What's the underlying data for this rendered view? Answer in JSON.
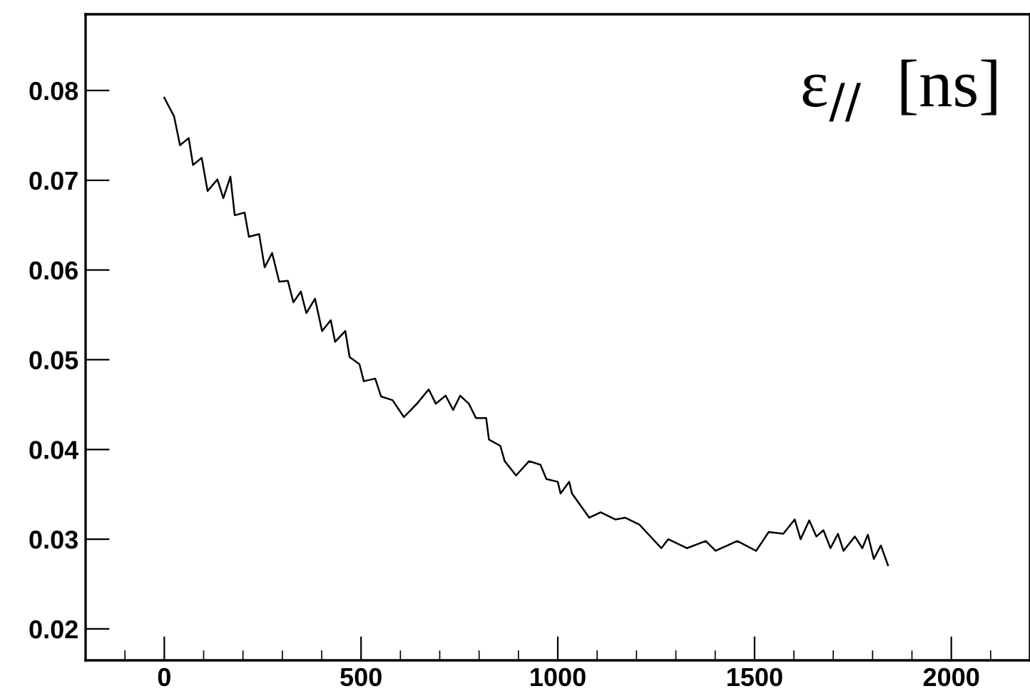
{
  "chart_data": {
    "type": "line",
    "annotations": [
      "ε$_{//}$  [ns]"
    ],
    "xlim": [
      -200,
      2200
    ],
    "ylim": [
      0.0165,
      0.0885
    ],
    "xticks": [
      0,
      500,
      1000,
      1500,
      2000
    ],
    "yticks": [
      0.02,
      0.03,
      0.04,
      0.05,
      0.06,
      0.07,
      0.08
    ],
    "grid": false,
    "legend": false,
    "marker": "none",
    "line_style": "solid",
    "series": [
      {
        "color": "#000000",
        "x": [
          0,
          25,
          40,
          62,
          73,
          95,
          110,
          135,
          150,
          168,
          179,
          204,
          215,
          241,
          255,
          274,
          292,
          314,
          328,
          347,
          361,
          383,
          401,
          423,
          434,
          460,
          471,
          496,
          507,
          536,
          551,
          580,
          609,
          642,
          672,
          690,
          715,
          734,
          752,
          774,
          792,
          818,
          825,
          854,
          865,
          894,
          927,
          956,
          971,
          1000,
          1007,
          1029,
          1036,
          1080,
          1109,
          1146,
          1171,
          1208,
          1263,
          1281,
          1328,
          1376,
          1401,
          1456,
          1504,
          1536,
          1573,
          1602,
          1617,
          1639,
          1657,
          1675,
          1693,
          1712,
          1726,
          1755,
          1774,
          1788,
          1803,
          1821,
          1839
        ],
        "values": [
          0.0792,
          0.0771,
          0.0739,
          0.0747,
          0.0717,
          0.0725,
          0.0688,
          0.0701,
          0.068,
          0.0704,
          0.0661,
          0.0664,
          0.0637,
          0.064,
          0.0603,
          0.0619,
          0.0587,
          0.0588,
          0.0564,
          0.0576,
          0.0552,
          0.0568,
          0.0532,
          0.0544,
          0.052,
          0.0532,
          0.0503,
          0.0495,
          0.0476,
          0.0479,
          0.0459,
          0.0455,
          0.0436,
          0.0451,
          0.0467,
          0.0451,
          0.046,
          0.0444,
          0.046,
          0.0451,
          0.0435,
          0.0435,
          0.0411,
          0.0404,
          0.0387,
          0.0371,
          0.0387,
          0.0383,
          0.0367,
          0.0364,
          0.0351,
          0.0364,
          0.0351,
          0.0324,
          0.033,
          0.0322,
          0.0324,
          0.0316,
          0.029,
          0.03,
          0.029,
          0.0298,
          0.0287,
          0.0298,
          0.0287,
          0.0308,
          0.0306,
          0.0322,
          0.03,
          0.0321,
          0.0303,
          0.031,
          0.029,
          0.0306,
          0.0287,
          0.0303,
          0.029,
          0.0305,
          0.0278,
          0.0293,
          0.0271
        ]
      }
    ]
  }
}
